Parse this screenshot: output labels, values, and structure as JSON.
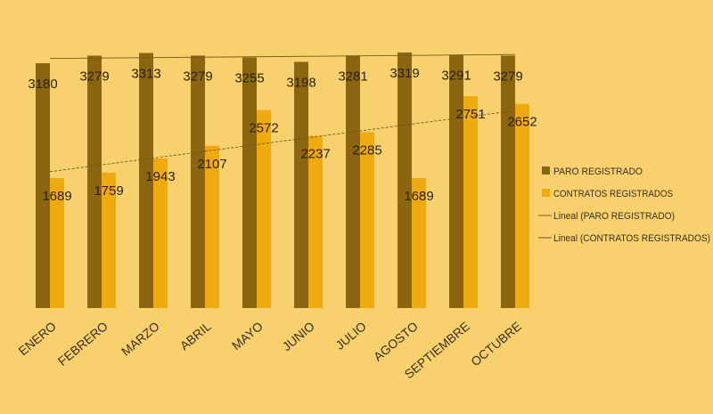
{
  "chart_data": {
    "type": "bar",
    "categories": [
      "ENERO",
      "FEBRERO",
      "MARZO",
      "ABRIL",
      "MAYO",
      "JUNIO",
      "JULIO",
      "AGOSTO",
      "SEPTIEMBRE",
      "OCTUBRE"
    ],
    "series": [
      {
        "name": "PARO REGISTRADO",
        "color": "#8c6511",
        "values": [
          3180,
          3279,
          3313,
          3279,
          3255,
          3198,
          3281,
          3319,
          3291,
          3279
        ]
      },
      {
        "name": "CONTRATOS REGISTRADOS",
        "color": "#eeaa0e",
        "values": [
          1689,
          1759,
          1943,
          2107,
          2572,
          2237,
          2285,
          1689,
          2751,
          2652
        ]
      }
    ],
    "trendlines": [
      {
        "name": "Lineal (PARO REGISTRADO)",
        "series": "PARO REGISTRADO"
      },
      {
        "name": "Lineal (CONTRATOS REGISTRADOS)",
        "series": "CONTRATOS REGISTRADOS"
      }
    ],
    "ylim": [
      0,
      3400
    ],
    "grid": false,
    "legend": "right",
    "background": "#f9d06e",
    "title": "",
    "xlabel": "",
    "ylabel": ""
  }
}
